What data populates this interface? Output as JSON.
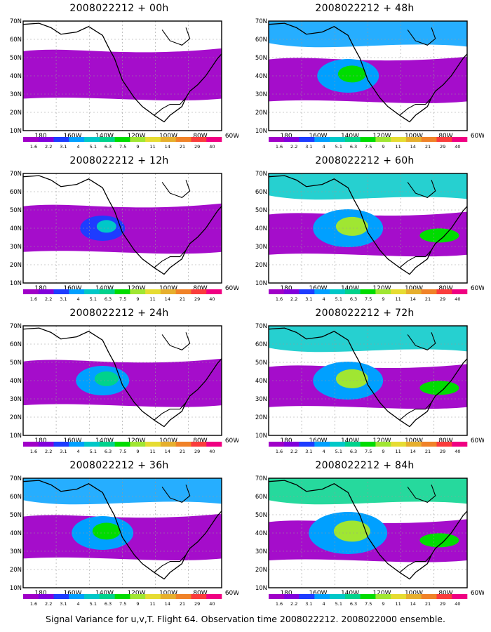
{
  "footer": "Signal Variance for u,v,T. Flight 64. Observation time 2008022212. 2008022000 ensemble.",
  "chart_data": {
    "type": "heatmap",
    "x_ticks": [
      "180",
      "160W",
      "140W",
      "120W",
      "100W",
      "80W",
      "60W"
    ],
    "y_ticks": [
      "10N",
      "20N",
      "30N",
      "40N",
      "50N",
      "60N",
      "70N"
    ],
    "xlim": [
      "170E",
      "60W"
    ],
    "ylim": [
      "10N",
      "70N"
    ],
    "grid": true,
    "colorbar_labels": [
      "1.6",
      "2.2",
      "3.1",
      "4",
      "5.1",
      "6.3",
      "7.5",
      "9",
      "11",
      "14",
      "21",
      "29",
      "40"
    ],
    "colorbar_colors": [
      "#a000c8",
      "#8200dc",
      "#1e3cff",
      "#00a0ff",
      "#00c8c8",
      "#00d28c",
      "#00dc00",
      "#a0e632",
      "#e6dc32",
      "#e6af2d",
      "#f08228",
      "#fa3c3c",
      "#f00082"
    ],
    "panels": [
      {
        "title": "2008022212 + 00h",
        "level": 1
      },
      {
        "title": "2008022212 + 48h",
        "level": 4
      },
      {
        "title": "2008022212 + 12h",
        "level": 2
      },
      {
        "title": "2008022212 + 60h",
        "level": 5
      },
      {
        "title": "2008022212 + 24h",
        "level": 3
      },
      {
        "title": "2008022212 + 72h",
        "level": 5
      },
      {
        "title": "2008022212 + 36h",
        "level": 4
      },
      {
        "title": "2008022212 + 84h",
        "level": 6
      }
    ]
  }
}
